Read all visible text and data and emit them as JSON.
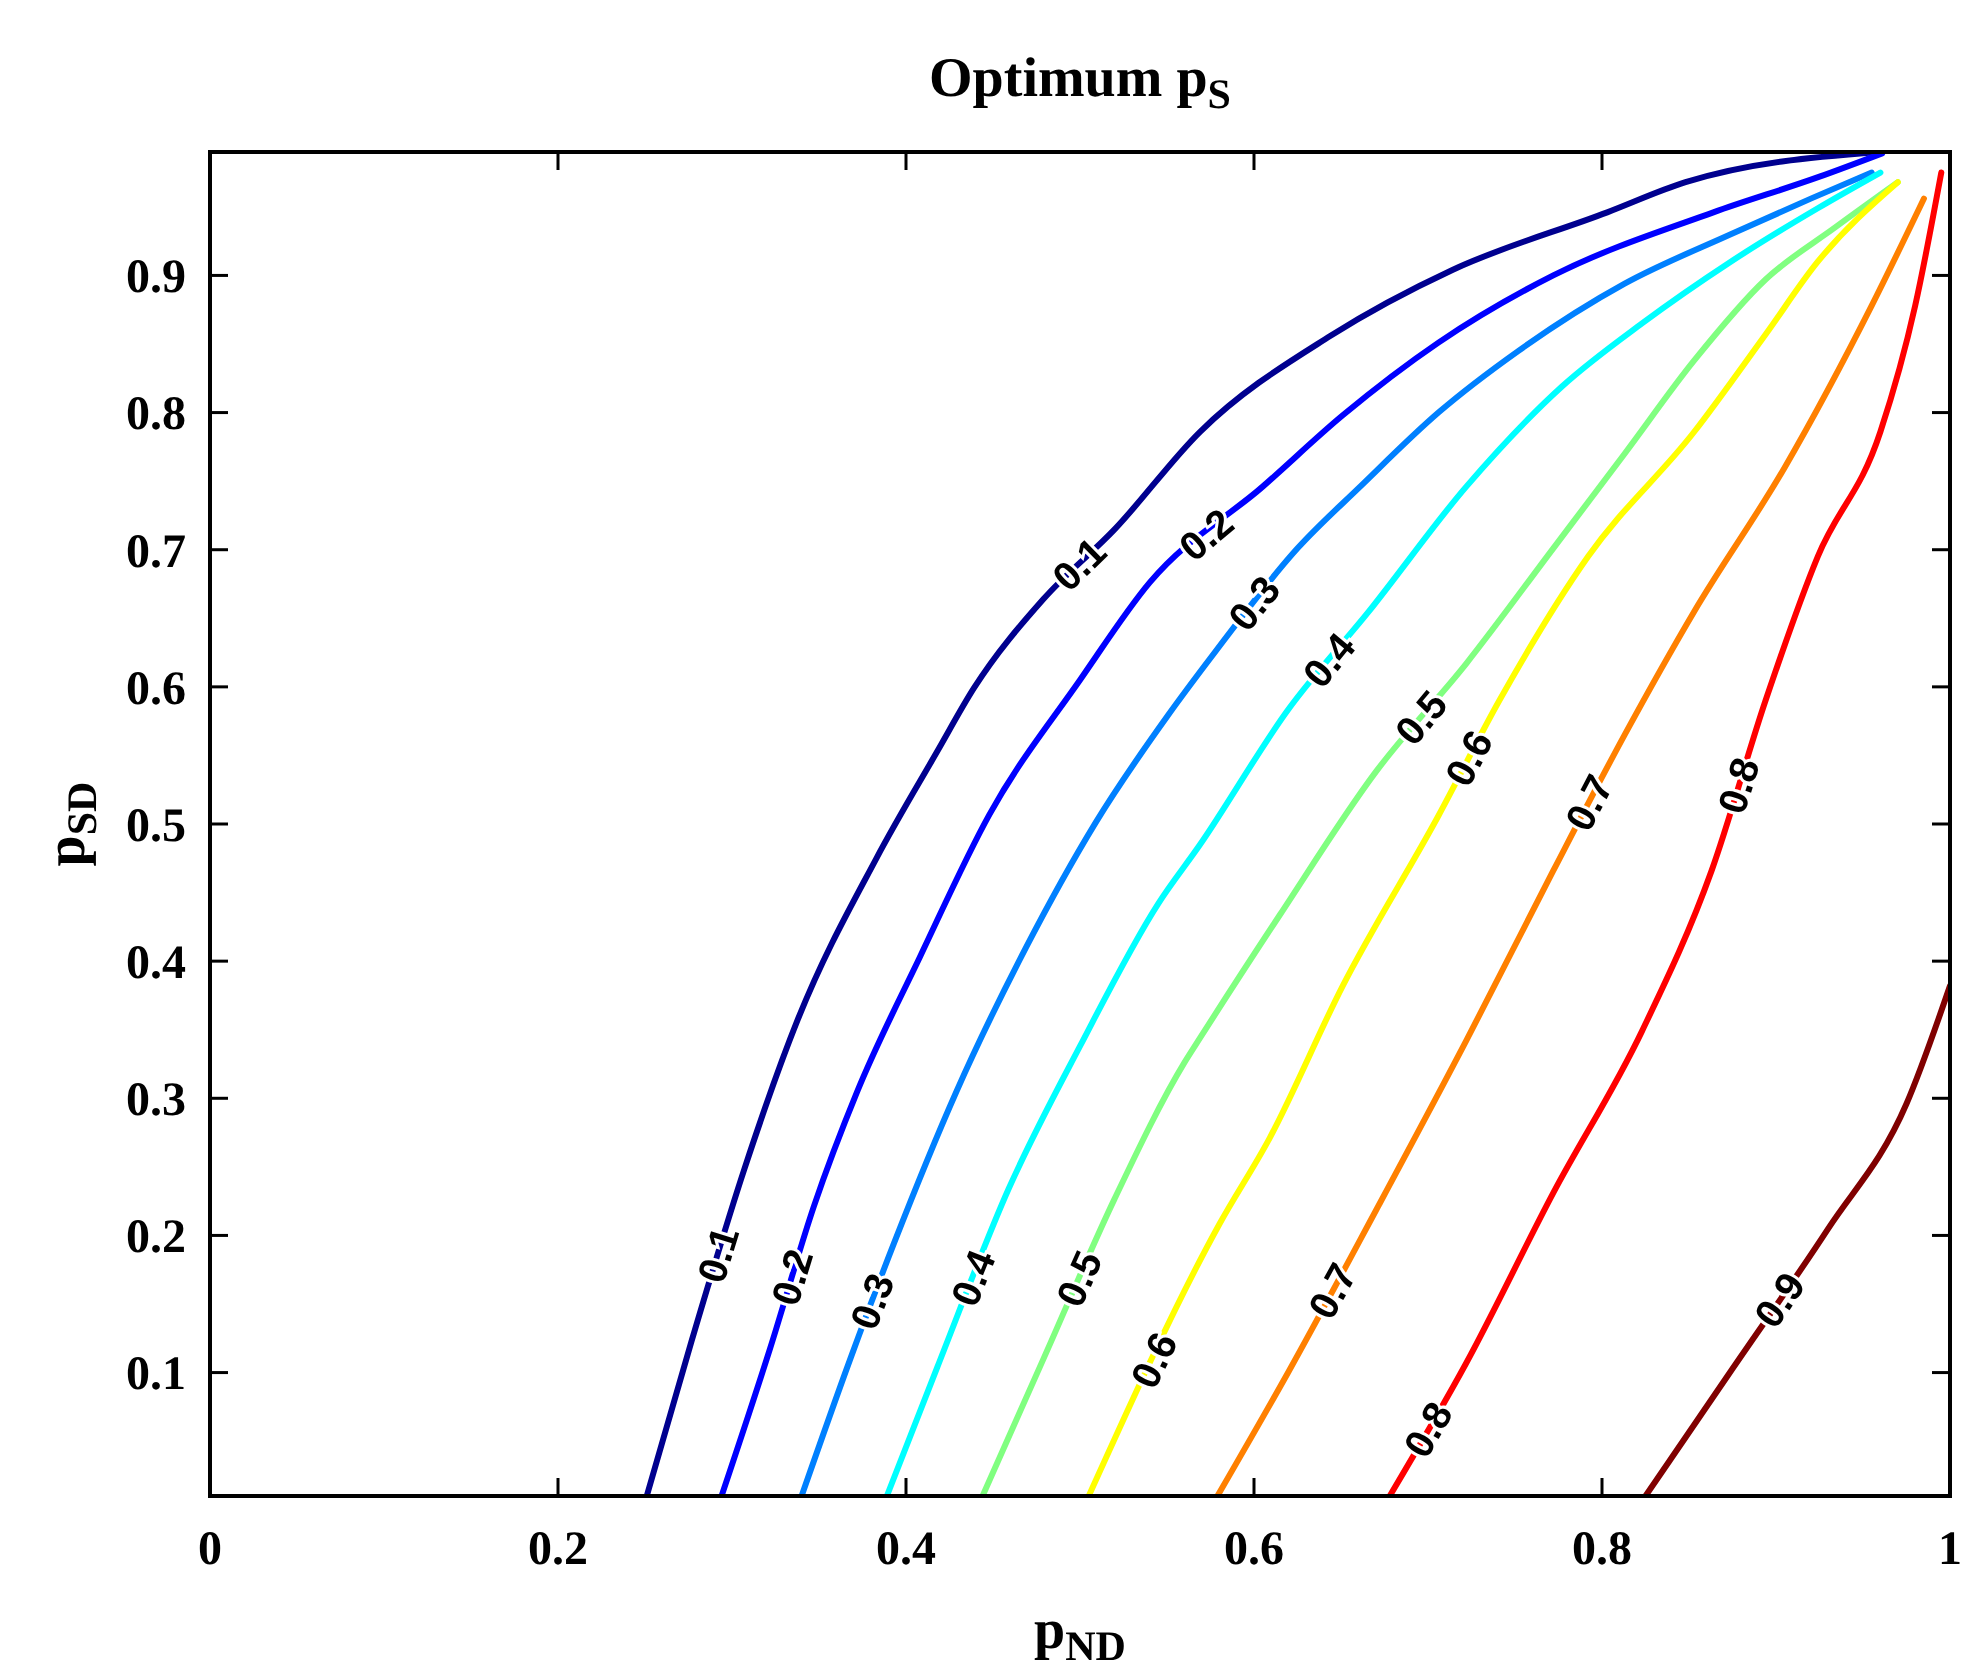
{
  "chart_data": {
    "type": "line",
    "title": "Optimum p$_{S}$",
    "xlabel": "p$_{ND}$",
    "ylabel": "p$_{SD}$",
    "xlim": [
      0,
      1
    ],
    "ylim": [
      0.01,
      0.99
    ],
    "xticks": [
      0,
      0.2,
      0.4,
      0.6,
      0.8,
      1
    ],
    "yticks": [
      0.1,
      0.2,
      0.3,
      0.4,
      0.5,
      0.6,
      0.7,
      0.8,
      0.9
    ],
    "series": [
      {
        "name": "0.1",
        "color": "#00008f",
        "x": [
          0.251,
          0.277,
          0.307,
          0.338,
          0.383,
          0.418,
          0.439,
          0.479,
          0.52,
          0.569,
          0.644,
          0.714,
          0.803,
          0.848,
          0.959
        ],
        "values": [
          0.01,
          0.124,
          0.248,
          0.358,
          0.475,
          0.553,
          0.599,
          0.664,
          0.715,
          0.786,
          0.856,
          0.904,
          0.946,
          0.968,
          0.99
        ]
      },
      {
        "name": "0.2",
        "color": "#0000ff",
        "x": [
          0.294,
          0.322,
          0.347,
          0.372,
          0.408,
          0.448,
          0.5,
          0.54,
          0.605,
          0.651,
          0.706,
          0.772,
          0.864,
          0.925,
          0.961
        ],
        "values": [
          0.01,
          0.118,
          0.221,
          0.305,
          0.403,
          0.507,
          0.605,
          0.676,
          0.746,
          0.798,
          0.851,
          0.9,
          0.946,
          0.972,
          0.989
        ]
      },
      {
        "name": "0.3",
        "color": "#0080ff",
        "x": [
          0.34,
          0.368,
          0.393,
          0.429,
          0.469,
          0.509,
          0.551,
          0.575,
          0.625,
          0.661,
          0.706,
          0.752,
          0.813,
          0.874,
          0.92,
          0.955
        ],
        "values": [
          0.01,
          0.11,
          0.194,
          0.305,
          0.41,
          0.501,
          0.58,
          0.621,
          0.701,
          0.746,
          0.8,
          0.845,
          0.894,
          0.93,
          0.956,
          0.975
        ]
      },
      {
        "name": "0.4",
        "color": "#00ffff",
        "x": [
          0.389,
          0.418,
          0.459,
          0.5,
          0.545,
          0.569,
          0.62,
          0.666,
          0.722,
          0.777,
          0.823,
          0.874,
          0.924,
          0.96
        ],
        "values": [
          0.01,
          0.104,
          0.234,
          0.338,
          0.442,
          0.485,
          0.584,
          0.655,
          0.746,
          0.819,
          0.865,
          0.91,
          0.949,
          0.975
        ]
      },
      {
        "name": "0.5",
        "color": "#80ff80",
        "x": [
          0.444,
          0.479,
          0.52,
          0.56,
          0.569,
          0.615,
          0.67,
          0.722,
          0.772,
          0.813,
          0.853,
          0.894,
          0.934,
          0.97
        ],
        "values": [
          0.01,
          0.11,
          0.227,
          0.326,
          0.344,
          0.434,
          0.538,
          0.617,
          0.701,
          0.77,
          0.838,
          0.897,
          0.935,
          0.968
        ]
      },
      {
        "name": "0.6",
        "color": "#ffff00",
        "x": [
          0.505,
          0.58,
          0.609,
          0.651,
          0.706,
          0.741,
          0.792,
          0.853,
          0.894,
          0.924,
          0.97
        ],
        "values": [
          0.01,
          0.208,
          0.271,
          0.382,
          0.506,
          0.59,
          0.695,
          0.786,
          0.857,
          0.91,
          0.968
        ]
      },
      {
        "name": "0.7",
        "color": "#ff8000",
        "x": [
          0.579,
          0.62,
          0.67,
          0.722,
          0.772,
          0.813,
          0.853,
          0.905,
          0.955,
          0.985
        ],
        "values": [
          0.01,
          0.101,
          0.218,
          0.342,
          0.466,
          0.565,
          0.655,
          0.76,
          0.878,
          0.956
        ]
      },
      {
        "name": "0.8",
        "color": "#ff0000",
        "x": [
          0.678,
          0.722,
          0.772,
          0.823,
          0.863,
          0.894,
          0.924,
          0.96,
          0.98,
          0.995
        ],
        "values": [
          0.01,
          0.107,
          0.231,
          0.349,
          0.466,
          0.59,
          0.695,
          0.786,
          0.878,
          0.975
        ]
      },
      {
        "name": "0.9",
        "color": "#800000",
        "x": [
          0.825,
          0.874,
          0.93,
          0.975,
          1.0
        ],
        "values": [
          0.01,
          0.101,
          0.205,
          0.296,
          0.382
        ]
      }
    ]
  }
}
